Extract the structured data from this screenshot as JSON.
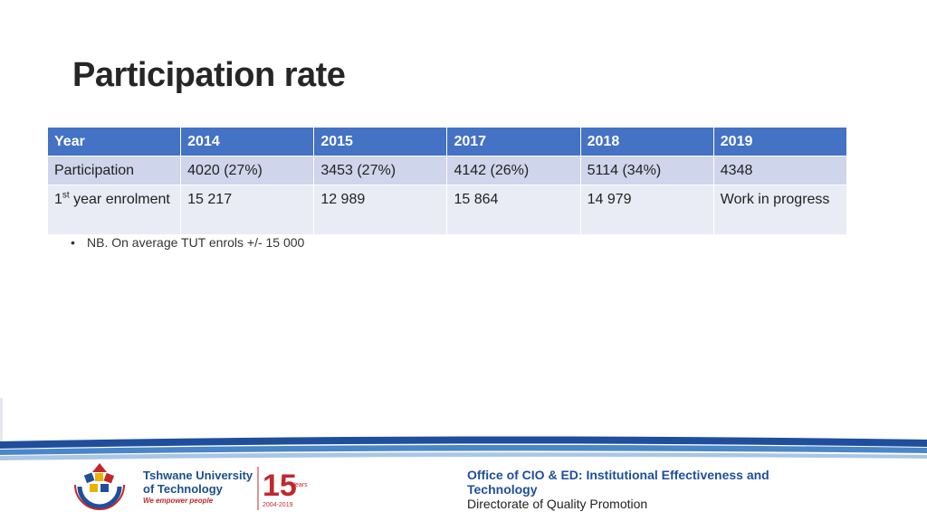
{
  "title": "Participation rate",
  "table": {
    "headers": [
      "Year",
      "2014",
      "2015",
      "2017",
      "2018",
      "2019"
    ],
    "participation_row": [
      "Participation",
      "4020 (27%)",
      "3453 (27%)",
      "4142 (26%)",
      "5114 (34%)",
      "4348"
    ],
    "enrolment_row": {
      "label_num": "1",
      "label_sup": "st",
      "label_rest": " year enrolment",
      "values": [
        "15 217",
        "12 989",
        "15 864",
        "14 979",
        "Work in progress"
      ]
    },
    "colors": {
      "header": "#4472c4",
      "row1": "#cfd5ea",
      "row2": "#e9ebf5"
    }
  },
  "note": {
    "bullet": "•",
    "text": "NB. On average TUT enrols +/- 15 000"
  },
  "footer": {
    "university_line1": "Tshwane University",
    "university_line2": "of Technology",
    "motto": "We empower people",
    "anniversary_number": "15",
    "anniversary_word": "Years",
    "anniversary_range": "2004-2019",
    "office": "Office of CIO & ED: Institutional  Effectiveness and Technology",
    "directorate": "Directorate of Quality Promotion"
  }
}
